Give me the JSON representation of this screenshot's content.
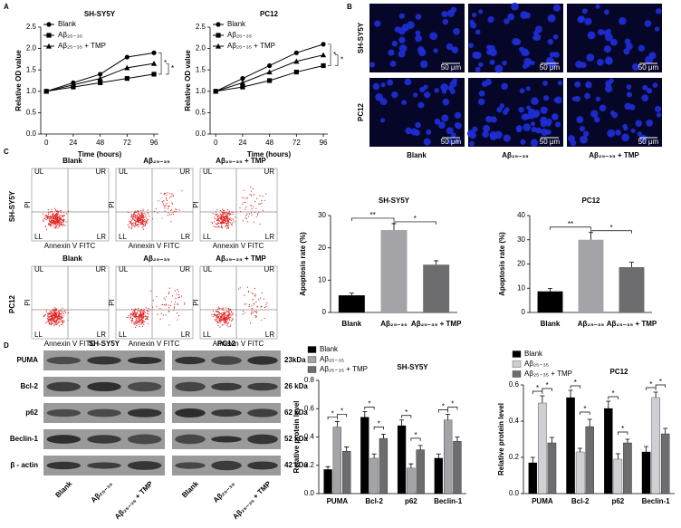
{
  "panel_labels": [
    "A",
    "B",
    "C",
    "D"
  ],
  "microscopy": {
    "rows": [
      "SH-SY5Y",
      "PC12"
    ],
    "columns": [
      "Blank",
      "Aβ₂₅₋₃₅",
      "Aβ₂₅₋₃₅ + TMP"
    ],
    "scale_bar": "50 μm"
  },
  "flow": {
    "columns": [
      "Blank",
      "Aβ₂₅₋₃₅",
      "Aβ₂₅₋₃₅ + TMP"
    ],
    "rows": [
      "SH-SY5Y",
      "PC12"
    ],
    "quadrants": [
      "UL",
      "UR",
      "LL",
      "LR"
    ],
    "x_label": "Annexin V FITC",
    "y_label": "PI"
  },
  "blot": {
    "groups": [
      "SH-SY5Y",
      "PC12"
    ],
    "proteins": [
      "PUMA",
      "Bcl-2",
      "p62",
      "Beclin-1",
      "β - actin"
    ],
    "sizes": [
      "23kDa",
      "26 kDa",
      "62 kDa",
      "52 kDa",
      "42 kDa"
    ],
    "lanes": [
      "Blank",
      "Aβ₂₅₋₃₅",
      "Aβ₂₅₋₃₅ + TMP"
    ]
  },
  "chart_data": [
    {
      "type": "line",
      "title": "SH-SY5Y",
      "x_label": "Time (hours)",
      "y_label": "Relative OD value",
      "x": [
        0,
        24,
        48,
        72,
        96
      ],
      "xlim": [
        -5,
        100
      ],
      "xticks": [
        0,
        24,
        48,
        72,
        96
      ],
      "ylim": [
        0,
        2.5
      ],
      "yticks": [
        {
          "value": 0,
          "label": "0.0"
        },
        {
          "value": 0.5,
          "label": "0.5"
        },
        {
          "value": 1,
          "label": "1.0"
        },
        {
          "value": 1.5,
          "label": "1.5"
        },
        {
          "value": 2,
          "label": "2.0"
        },
        {
          "value": 2.5,
          "label": "2.5"
        }
      ],
      "legend": "upper left",
      "annotations": [
        "*",
        "*"
      ],
      "series": [
        {
          "name": "Blank",
          "color": "#000000",
          "marker": "circle",
          "values": [
            1.0,
            1.2,
            1.4,
            1.8,
            1.9
          ]
        },
        {
          "name": "Aβ₂₅₋₃₅",
          "color": "#000000",
          "marker": "square",
          "values": [
            1.0,
            1.1,
            1.2,
            1.3,
            1.4
          ]
        },
        {
          "name": "Aβ₂₅₋₃₅ + TMP",
          "color": "#000000",
          "marker": "triangle",
          "values": [
            1.0,
            1.15,
            1.3,
            1.55,
            1.65
          ]
        }
      ]
    },
    {
      "type": "line",
      "title": "PC12",
      "x_label": "Time (hours)",
      "y_label": "Relative OD value",
      "x": [
        0,
        24,
        48,
        72,
        96
      ],
      "xlim": [
        -5,
        100
      ],
      "xticks": [
        0,
        24,
        48,
        72,
        96
      ],
      "ylim": [
        0,
        2.5
      ],
      "yticks": [
        {
          "value": 0,
          "label": "0.0"
        },
        {
          "value": 0.5,
          "label": "0.5"
        },
        {
          "value": 1,
          "label": "1.0"
        },
        {
          "value": 1.5,
          "label": "1.5"
        },
        {
          "value": 2,
          "label": "2.0"
        },
        {
          "value": 2.5,
          "label": "2.5"
        }
      ],
      "legend": "upper left",
      "annotations": [
        "*",
        "*"
      ],
      "series": [
        {
          "name": "Blank",
          "color": "#000000",
          "marker": "circle",
          "values": [
            1.0,
            1.3,
            1.6,
            1.9,
            2.1
          ]
        },
        {
          "name": "Aβ₂₅₋₃₅",
          "color": "#000000",
          "marker": "square",
          "values": [
            1.0,
            1.1,
            1.25,
            1.45,
            1.6
          ]
        },
        {
          "name": "Aβ₂₅₋₃₅ + TMP",
          "color": "#000000",
          "marker": "triangle",
          "values": [
            1.0,
            1.2,
            1.45,
            1.7,
            1.85
          ]
        }
      ]
    },
    {
      "type": "bar",
      "title": "SH-SY5Y",
      "y_label": "Apoptosis rate (%)",
      "categories": [
        "Blank",
        "Aβ₂₅₋₃₅",
        "Aβ₂₅₋₃₅ + TMP"
      ],
      "values": [
        5.3,
        25.5,
        14.8
      ],
      "errors": [
        0.7,
        2,
        1.2
      ],
      "colors": [
        "#000000",
        "#a3a3a8",
        "#6d6d70"
      ],
      "ylim": [
        0,
        30
      ],
      "yticks": [
        0,
        10,
        20,
        30
      ],
      "annotations": [
        "**",
        "*"
      ]
    },
    {
      "type": "bar",
      "title": "PC12",
      "y_label": "Apoptosis rate (%)",
      "categories": [
        "Blank",
        "Aβ₂₅₋₃₅",
        "Aβ₂₅₋₃₅ + TMP"
      ],
      "values": [
        8.7,
        30,
        18.7
      ],
      "errors": [
        1.2,
        3,
        2
      ],
      "colors": [
        "#000000",
        "#a3a3a8",
        "#6d6d70"
      ],
      "ylim": [
        0,
        40
      ],
      "yticks": [
        0,
        10,
        20,
        30,
        40
      ],
      "annotations": [
        "**",
        "*"
      ]
    },
    {
      "type": "grouped-bar",
      "title": "SH-SY5Y",
      "y_label": "Relative protein level",
      "categories": [
        "PUMA",
        "Bcl-2",
        "p62",
        "Beclin-1"
      ],
      "legend": "upper left",
      "ylim": [
        0,
        0.8
      ],
      "yticks": [
        {
          "value": 0,
          "label": "0.0"
        },
        0.2,
        0.4,
        0.6,
        0.8
      ],
      "annotations": [
        "*",
        "*",
        "*",
        "*",
        "*",
        "*",
        "*",
        "*"
      ],
      "series": [
        {
          "name": "Blank",
          "color": "#000000",
          "values": [
            0.17,
            0.54,
            0.48,
            0.25
          ],
          "errors": [
            0.02,
            0.04,
            0.04,
            0.03
          ]
        },
        {
          "name": "Aβ₂₅₋₃₅",
          "color": "#a3a3a8",
          "values": [
            0.47,
            0.25,
            0.18,
            0.52
          ],
          "errors": [
            0.04,
            0.03,
            0.03,
            0.04
          ]
        },
        {
          "name": "Aβ₂₅₋₃₅ + TMP",
          "color": "#6d6d70",
          "values": [
            0.3,
            0.39,
            0.31,
            0.37
          ],
          "errors": [
            0.03,
            0.03,
            0.03,
            0.03
          ]
        }
      ]
    },
    {
      "type": "grouped-bar",
      "title": "PC12",
      "y_label": "Relative protein level",
      "categories": [
        "PUMA",
        "Bcl-2",
        "p62",
        "Beclin-1"
      ],
      "legend": "upper left",
      "ylim": [
        0,
        0.6
      ],
      "yticks": [
        {
          "value": 0,
          "label": "0.0"
        },
        0.2,
        0.4,
        0.6
      ],
      "annotations": [
        "*",
        "*",
        "*",
        "*",
        "*",
        "*",
        "*",
        "*"
      ],
      "series": [
        {
          "name": "Blank",
          "color": "#000000",
          "values": [
            0.17,
            0.53,
            0.47,
            0.23
          ],
          "errors": [
            0.03,
            0.04,
            0.04,
            0.03
          ]
        },
        {
          "name": "Aβ₂₅₋₃₅",
          "color": "#d0d0d4",
          "values": [
            0.5,
            0.23,
            0.19,
            0.53
          ],
          "errors": [
            0.04,
            0.02,
            0.03,
            0.03
          ]
        },
        {
          "name": "Aβ₂₅₋₃₅ + TMP",
          "color": "#6d6d70",
          "values": [
            0.28,
            0.37,
            0.28,
            0.33
          ],
          "errors": [
            0.03,
            0.04,
            0.02,
            0.03
          ]
        }
      ]
    }
  ]
}
